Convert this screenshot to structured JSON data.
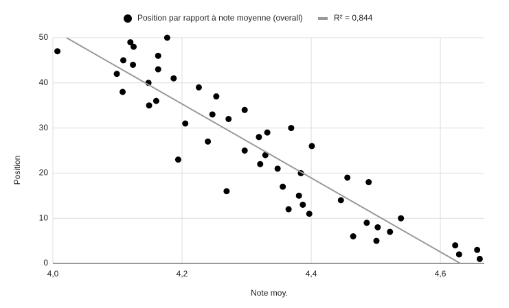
{
  "chart_data": {
    "type": "scatter",
    "x_label": "Note moy.",
    "y_label": "Position",
    "series": [
      {
        "name": "Position par rapport à note moyenne (overall)",
        "color": "#000000",
        "x": [
          4.007,
          4.099,
          4.109,
          4.108,
          4.12,
          4.125,
          4.124,
          4.148,
          4.149,
          4.16,
          4.163,
          4.163,
          4.177,
          4.187,
          4.194,
          4.205,
          4.226,
          4.24,
          4.247,
          4.253,
          4.269,
          4.272,
          4.297,
          4.297,
          4.319,
          4.321,
          4.329,
          4.332,
          4.348,
          4.356,
          4.365,
          4.369,
          4.381,
          4.384,
          4.387,
          4.397,
          4.401,
          4.446,
          4.456,
          4.465,
          4.486,
          4.489,
          4.501,
          4.503,
          4.522,
          4.539,
          4.623,
          4.629,
          4.657,
          4.661
        ],
        "values": [
          47,
          42,
          45,
          38,
          49,
          48,
          44,
          40,
          35,
          36,
          46,
          43,
          50,
          41,
          23,
          31,
          39,
          27,
          33,
          37,
          16,
          32,
          34,
          25,
          28,
          22,
          24,
          29,
          21,
          17,
          12,
          30,
          15,
          20,
          13,
          11,
          26,
          14,
          19,
          6,
          9,
          18,
          5,
          8,
          7,
          10,
          4,
          2,
          3,
          1
        ]
      }
    ],
    "trendline": {
      "name": "R² = 0,844",
      "color": "#999999",
      "x": [
        4.021,
        4.631
      ],
      "values": [
        50,
        0
      ]
    },
    "xlim": [
      4.0,
      4.668
    ],
    "ylim": [
      0,
      50
    ],
    "xticks": [
      {
        "value": 4.0,
        "label": "4,0"
      },
      {
        "value": 4.2,
        "label": "4,2"
      },
      {
        "value": 4.4,
        "label": "4,4"
      },
      {
        "value": 4.6,
        "label": "4,6"
      }
    ],
    "yticks": [
      0,
      10,
      20,
      30,
      40,
      50
    ],
    "grid": true,
    "legend": "top"
  }
}
